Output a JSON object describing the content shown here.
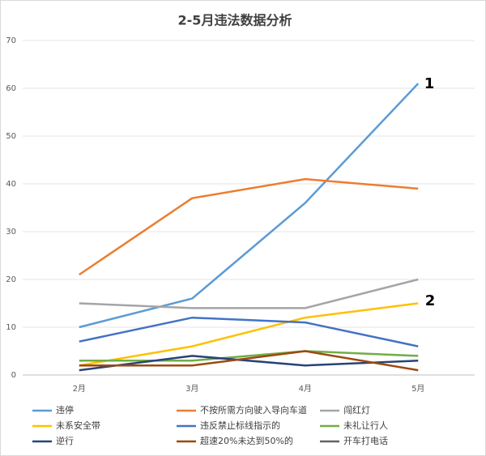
{
  "chart_data": {
    "type": "line",
    "title": "2-5月违法数据分析",
    "categories": [
      "2月",
      "3月",
      "4月",
      "5月"
    ],
    "series": [
      {
        "name": "违停",
        "color": "#5b9bd5",
        "values": [
          10,
          16,
          36,
          61
        ]
      },
      {
        "name": "不按所需方向驶入导向车道",
        "color": "#ed7d31",
        "values": [
          21,
          37,
          41,
          39
        ]
      },
      {
        "name": "闯红灯",
        "color": "#a5a5a5",
        "values": [
          15,
          14,
          14,
          20
        ]
      },
      {
        "name": "未系安全带",
        "color": "#ffc000",
        "values": [
          2,
          6,
          12,
          15
        ]
      },
      {
        "name": "违反禁止标线指示的",
        "color": "#4472c4",
        "values": [
          7,
          12,
          11,
          6
        ]
      },
      {
        "name": "未礼让行人",
        "color": "#70ad47",
        "values": [
          3,
          3,
          5,
          4
        ]
      },
      {
        "name": "逆行",
        "color": "#264478",
        "values": [
          1,
          4,
          2,
          3
        ]
      },
      {
        "name": "超速20%未达到50%的",
        "color": "#9e480e",
        "values": [
          2,
          2,
          5,
          1
        ]
      },
      {
        "name": "开车打电话",
        "color": "#636363",
        "values": [
          null,
          null,
          null,
          null
        ]
      }
    ],
    "ylim": [
      0,
      70
    ],
    "yticks": [
      0,
      10,
      20,
      30,
      40,
      50,
      60,
      70
    ],
    "grid": true,
    "annotations": [
      "1",
      "2"
    ]
  }
}
